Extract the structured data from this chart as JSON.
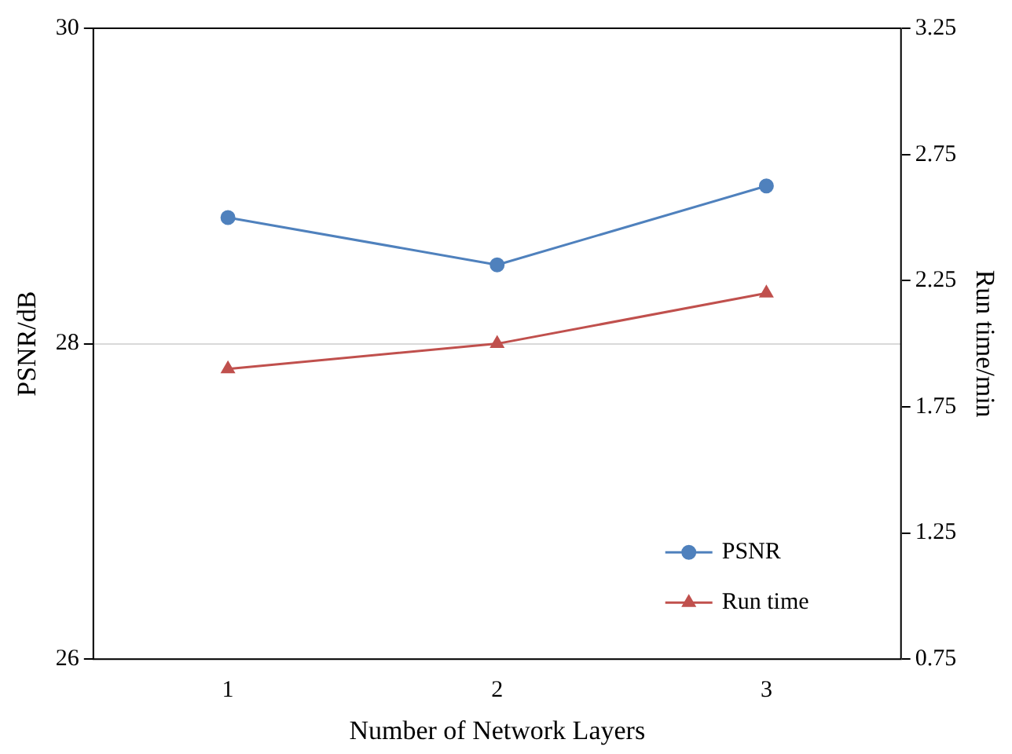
{
  "chart_data": {
    "type": "line",
    "xlabel": "Number of Network Layers",
    "ylabel": "PSNR/dB",
    "y2label": "Run time/min",
    "categories": [
      "1",
      "2",
      "3"
    ],
    "series": [
      {
        "name": "PSNR",
        "color": "#4f81bd",
        "marker": "circle",
        "values": [
          28.8,
          28.5,
          29.0
        ]
      },
      {
        "name": "Run time",
        "color": "#c0504d",
        "marker": "triangle",
        "axis": "y2",
        "values": [
          1.9,
          2.0,
          2.2
        ]
      }
    ],
    "ylim": [
      26,
      30
    ],
    "yticks": [
      26,
      28,
      30
    ],
    "y2lim": [
      0.75,
      3.25
    ],
    "y2ticks": [
      0.75,
      1.25,
      1.75,
      2.25,
      2.75,
      3.25
    ],
    "grid": "y",
    "legend": "bottom right"
  }
}
